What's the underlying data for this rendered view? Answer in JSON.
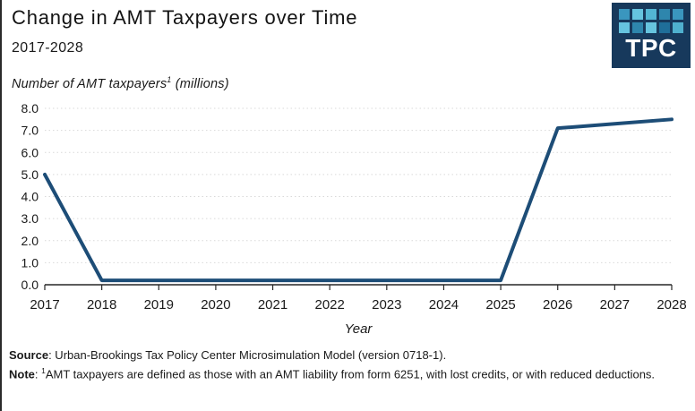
{
  "header": {
    "title": "Change in AMT Taxpayers over Time",
    "subtitle": "2017-2028",
    "y_note_prefix": "Number of AMT taxpayers",
    "y_note_sup": "1",
    "y_note_suffix": " (millions)"
  },
  "logo": {
    "text": "TPC",
    "bg": "#17395C",
    "squares": [
      "#3A96BE",
      "#66C4DF",
      "#53B6D4",
      "#2E86AD",
      "#3A96BE",
      "#66C4DF",
      "#2E86AD",
      "#66C4DF",
      "#1F6E99",
      "#4FB0CE"
    ]
  },
  "colors": {
    "line": "#1D4D77",
    "grid": "#D9D9D9",
    "axis": "#262626",
    "text": "#1A1A1A"
  },
  "chart_data": {
    "type": "line",
    "title": "Change in AMT Taxpayers over Time",
    "subtitle": "2017-2028",
    "x": [
      "2017",
      "2018",
      "2019",
      "2020",
      "2021",
      "2022",
      "2023",
      "2024",
      "2025",
      "2026",
      "2027",
      "2028"
    ],
    "values": [
      5.0,
      0.2,
      0.2,
      0.2,
      0.2,
      0.2,
      0.2,
      0.2,
      0.2,
      7.1,
      7.3,
      7.5
    ],
    "xlabel": "Year",
    "ylabel": "Number of AMT taxpayers (millions)",
    "ylim": [
      0,
      8
    ],
    "y_ticks": [
      0,
      1,
      2,
      3,
      4,
      5,
      6,
      7,
      8
    ],
    "y_tick_labels": [
      "0.0",
      "1.0",
      "2.0",
      "3.0",
      "4.0",
      "5.0",
      "6.0",
      "7.0",
      "8.0"
    ],
    "grid": "horizontal-dotted",
    "legend": "none",
    "line_color": "#1D4D77"
  },
  "footer": {
    "source_label": "Source",
    "source_text": ": Urban-Brookings Tax Policy Center Microsimulation Model (version 0718-1).",
    "note_label": "Note",
    "note_colon": ": ",
    "note_sup": "1",
    "note_text": "AMT taxpayers are defined as those with an AMT liability from form 6251, with lost credits, or with reduced deductions."
  }
}
